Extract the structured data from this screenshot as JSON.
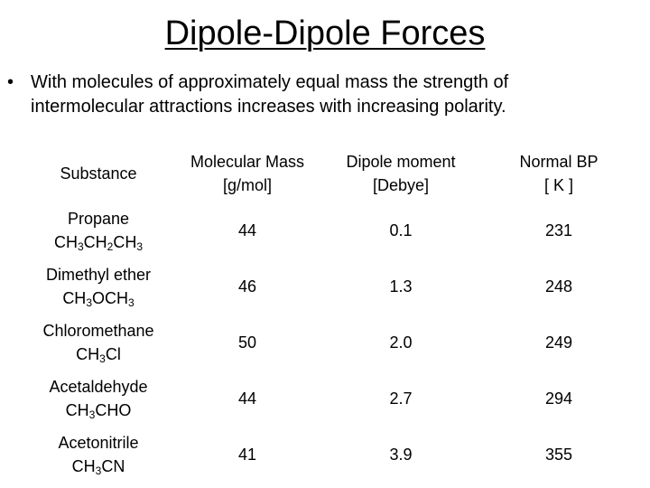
{
  "title": "Dipole-Dipole Forces",
  "bullet": {
    "symbol": "•",
    "text": "With molecules of approximately equal mass the strength of intermolecular attractions increases with increasing polarity."
  },
  "table": {
    "headers": [
      {
        "line1": "Substance",
        "line2": ""
      },
      {
        "line1": "Molecular Mass",
        "line2": "[g/mol]"
      },
      {
        "line1": "Dipole moment",
        "line2": "[Debye]"
      },
      {
        "line1": "Normal BP",
        "line2": "[ K ]"
      }
    ],
    "rows": [
      {
        "name": "Propane",
        "formula_parts": [
          [
            "CH",
            "3"
          ],
          [
            "CH",
            "2"
          ],
          [
            "CH",
            "3"
          ]
        ],
        "formula": "CH3CH2CH3",
        "mass": "44",
        "dipole": "0.1",
        "bp": "231"
      },
      {
        "name": "Dimethyl ether",
        "formula_parts": [
          [
            "CH",
            "3"
          ],
          [
            "OCH",
            "3"
          ]
        ],
        "formula": "CH3OCH3",
        "mass": "46",
        "dipole": "1.3",
        "bp": "248"
      },
      {
        "name": "Chloromethane",
        "formula_parts": [
          [
            "CH",
            "3"
          ],
          [
            "Cl",
            ""
          ]
        ],
        "formula": "CH3Cl",
        "mass": "50",
        "dipole": "2.0",
        "bp": "249"
      },
      {
        "name": "Acetaldehyde",
        "formula_parts": [
          [
            "CH",
            "3"
          ],
          [
            "CHO",
            ""
          ]
        ],
        "formula": "CH3CHO",
        "mass": "44",
        "dipole": "2.7",
        "bp": "294"
      },
      {
        "name": "Acetonitrile",
        "formula_parts": [
          [
            "CH",
            "3"
          ],
          [
            "CN",
            ""
          ]
        ],
        "formula": "CH3CN",
        "mass": "41",
        "dipole": "3.9",
        "bp": "355"
      }
    ]
  }
}
